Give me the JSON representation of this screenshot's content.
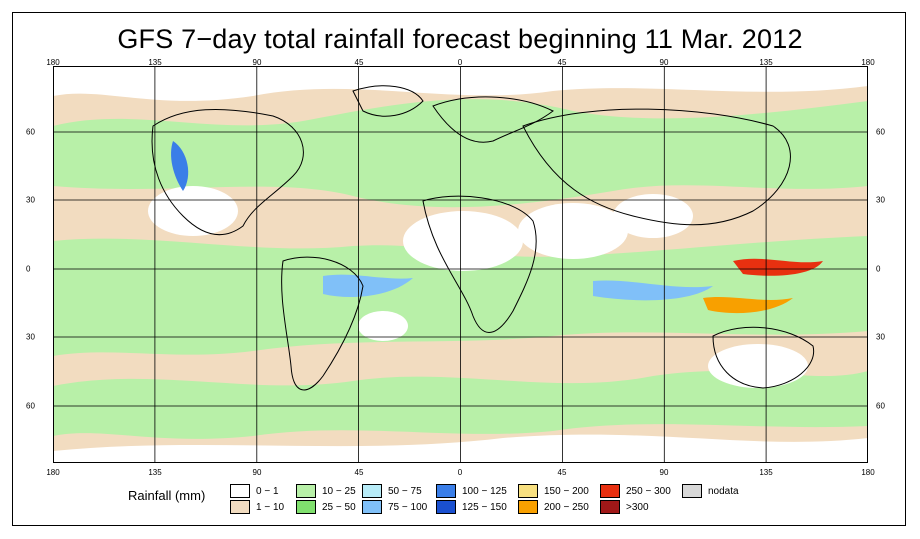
{
  "title": "GFS 7−day total rainfall forecast beginning 11 Mar. 2012",
  "axes": {
    "lon_ticks": [
      "180",
      "135",
      "90",
      "45",
      "0",
      "45",
      "90",
      "135",
      "180"
    ],
    "lat_ticks": [
      "60",
      "30",
      "0",
      "30",
      "60"
    ]
  },
  "legend": {
    "title": "Rainfall (mm)",
    "items": [
      {
        "label": "0 − 1",
        "color": "#ffffff"
      },
      {
        "label": "1 − 10",
        "color": "#f2dcc0"
      },
      {
        "label": "10 − 25",
        "color": "#b8f0a8"
      },
      {
        "label": "25 − 50",
        "color": "#80e06e"
      },
      {
        "label": "50 − 75",
        "color": "#b8ecf8"
      },
      {
        "label": "75 − 100",
        "color": "#80c0f8"
      },
      {
        "label": "100 − 125",
        "color": "#3a7ee8"
      },
      {
        "label": "125 − 150",
        "color": "#1a50d0"
      },
      {
        "label": "150 − 200",
        "color": "#f8e080"
      },
      {
        "label": "200 − 250",
        "color": "#f8a000"
      },
      {
        "label": "250 − 300",
        "color": "#e83010"
      },
      {
        "label": ">300",
        "color": "#a01818"
      },
      {
        "label": "nodata",
        "color": "#d8d8d8"
      }
    ]
  },
  "colors": {
    "ocean_band": "#b8f0a8",
    "dry": "#f2dcc0",
    "heavy": "#e83010"
  }
}
